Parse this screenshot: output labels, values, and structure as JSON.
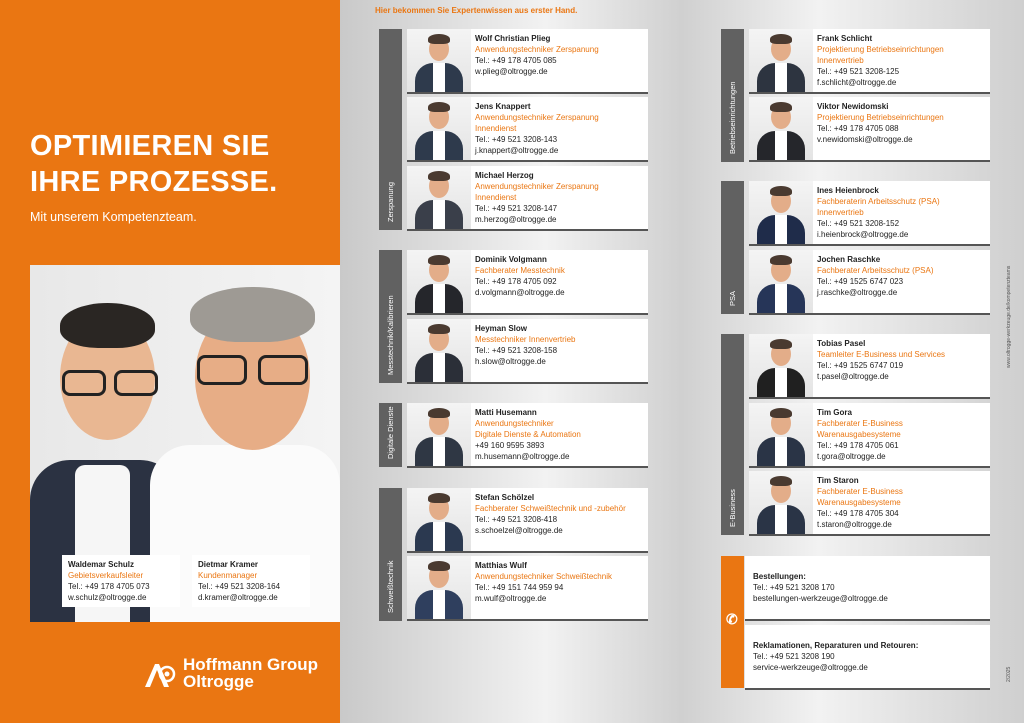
{
  "left": {
    "headline_1": "OPTIMIEREN SIE",
    "headline_2": "IHRE PROZESSE.",
    "subline": "Mit unserem Kompetenzteam.",
    "people": [
      {
        "name": "Waldemar Schulz",
        "role": "Gebietsverkaufsleiter",
        "tel": "Tel.: +49 178 4705 073",
        "email": "w.schulz@oltrogge.de"
      },
      {
        "name": "Dietmar Kramer",
        "role": "Kundenmanager",
        "tel": "Tel.: +49 521 3208-164",
        "email": "d.kramer@oltrogge.de"
      }
    ],
    "logo_1": "Hoffmann Group",
    "logo_2": "Oltrogge"
  },
  "header": {
    "tagline": "Hier bekommen Sie Expertenwissen aus erster Hand."
  },
  "categories": {
    "zerspanung": "Zerspanung",
    "messtechnik": "Messtechnik/Kalibrieren",
    "digitale": "Digitale Dienste",
    "schweiss": "Schweißtechnik",
    "betrieb": "Betriebseinrichtungen",
    "psa": "PSA",
    "ebusiness": "E-Business"
  },
  "contacts": [
    {
      "name": "Wolf Christian Plieg",
      "role": "Anwendungstechniker Zerspanung",
      "role2": "",
      "tel": "Tel.: +49 178 4705 085",
      "email": "w.plieg@oltrogge.de"
    },
    {
      "name": "Jens Knappert",
      "role": "Anwendungstechniker Zerspanung",
      "role2": "Innendienst",
      "tel": "Tel.: +49 521 3208-143",
      "email": "j.knappert@oltrogge.de"
    },
    {
      "name": "Michael Herzog",
      "role": "Anwendungstechniker Zerspanung",
      "role2": "Innendienst",
      "tel": "Tel.: +49 521 3208-147",
      "email": "m.herzog@oltrogge.de"
    },
    {
      "name": "Dominik Volgmann",
      "role": "Fachberater Messtechnik",
      "role2": "",
      "tel": "Tel.: +49 178 4705 092",
      "email": "d.volgmann@oltrogge.de"
    },
    {
      "name": "Heyman Slow",
      "role": "Messtechniker Innenvertrieb",
      "role2": "",
      "tel": "Tel.: +49 521 3208-158",
      "email": "h.slow@oltrogge.de"
    },
    {
      "name": "Matti Husemann",
      "role": "Anwendungstechniker",
      "role2": "Digitale Dienste & Automation",
      "tel": "+49 160 9595 3893",
      "email": "m.husemann@oltrogge.de"
    },
    {
      "name": "Stefan Schölzel",
      "role": "Fachberater Schweißtechnik und -zubehör",
      "role2": "",
      "tel": "Tel.: +49 521 3208-418",
      "email": "s.schoelzel@oltrogge.de"
    },
    {
      "name": "Matthias Wulf",
      "role": "Anwendungstechniker Schweißtechnik",
      "role2": "",
      "tel": "Tel.: +49 151 744 959 94",
      "email": "m.wulf@oltrogge.de"
    },
    {
      "name": "Frank Schlicht",
      "role": "Projektierung Betriebseinrichtungen",
      "role2": "Innenvertrieb",
      "tel": "Tel.: +49 521 3208-125",
      "email": "f.schlicht@oltrogge.de"
    },
    {
      "name": "Viktor Newidomski",
      "role": "Projektierung Betriebseinrichtungen",
      "role2": "",
      "tel": "Tel.: +49 178 4705 088",
      "email": "v.newidomski@oltrogge.de"
    },
    {
      "name": "Ines Heienbrock",
      "role": "Fachberaterin Arbeitsschutz (PSA)",
      "role2": "Innenvertrieb",
      "tel": "Tel.: +49 521 3208-152",
      "email": "i.heienbrock@oltrogge.de"
    },
    {
      "name": "Jochen Raschke",
      "role": "Fachberater Arbeitsschutz (PSA)",
      "role2": "",
      "tel": "Tel.: +49 1525 6747 023",
      "email": "j.raschke@oltrogge.de"
    },
    {
      "name": "Tobias Pasel",
      "role": "Teamleiter E-Business und Services",
      "role2": "",
      "tel": "Tel.: +49 1525 6747 019",
      "email": "t.pasel@oltrogge.de"
    },
    {
      "name": "Tim Gora",
      "role": "Fachberater E-Business",
      "role2": "Warenausgabesysteme",
      "tel": "Tel.: +49 178 4705 061",
      "email": "t.gora@oltrogge.de"
    },
    {
      "name": "Tim Staron",
      "role": "Fachberater E-Business",
      "role2": "Warenausgabesysteme",
      "tel": "Tel.: +49 178 4705 304",
      "email": "t.staron@oltrogge.de"
    }
  ],
  "service": [
    {
      "title": "Bestellungen:",
      "tel": "Tel.: +49 521 3208 170",
      "email": "bestellungen-werkzeuge@oltrogge.de"
    },
    {
      "title": "Reklamationen, Reparaturen und Retouren:",
      "tel": "Tel.: +49 521 3208 190",
      "email": "service-werkzeuge@oltrogge.de"
    }
  ],
  "side_url": "www.oltrogge-werkzeuge.de/kompetenzteams",
  "date_code": "2/2025",
  "colors": {
    "brand": "#ea7612",
    "category": "#616161"
  }
}
